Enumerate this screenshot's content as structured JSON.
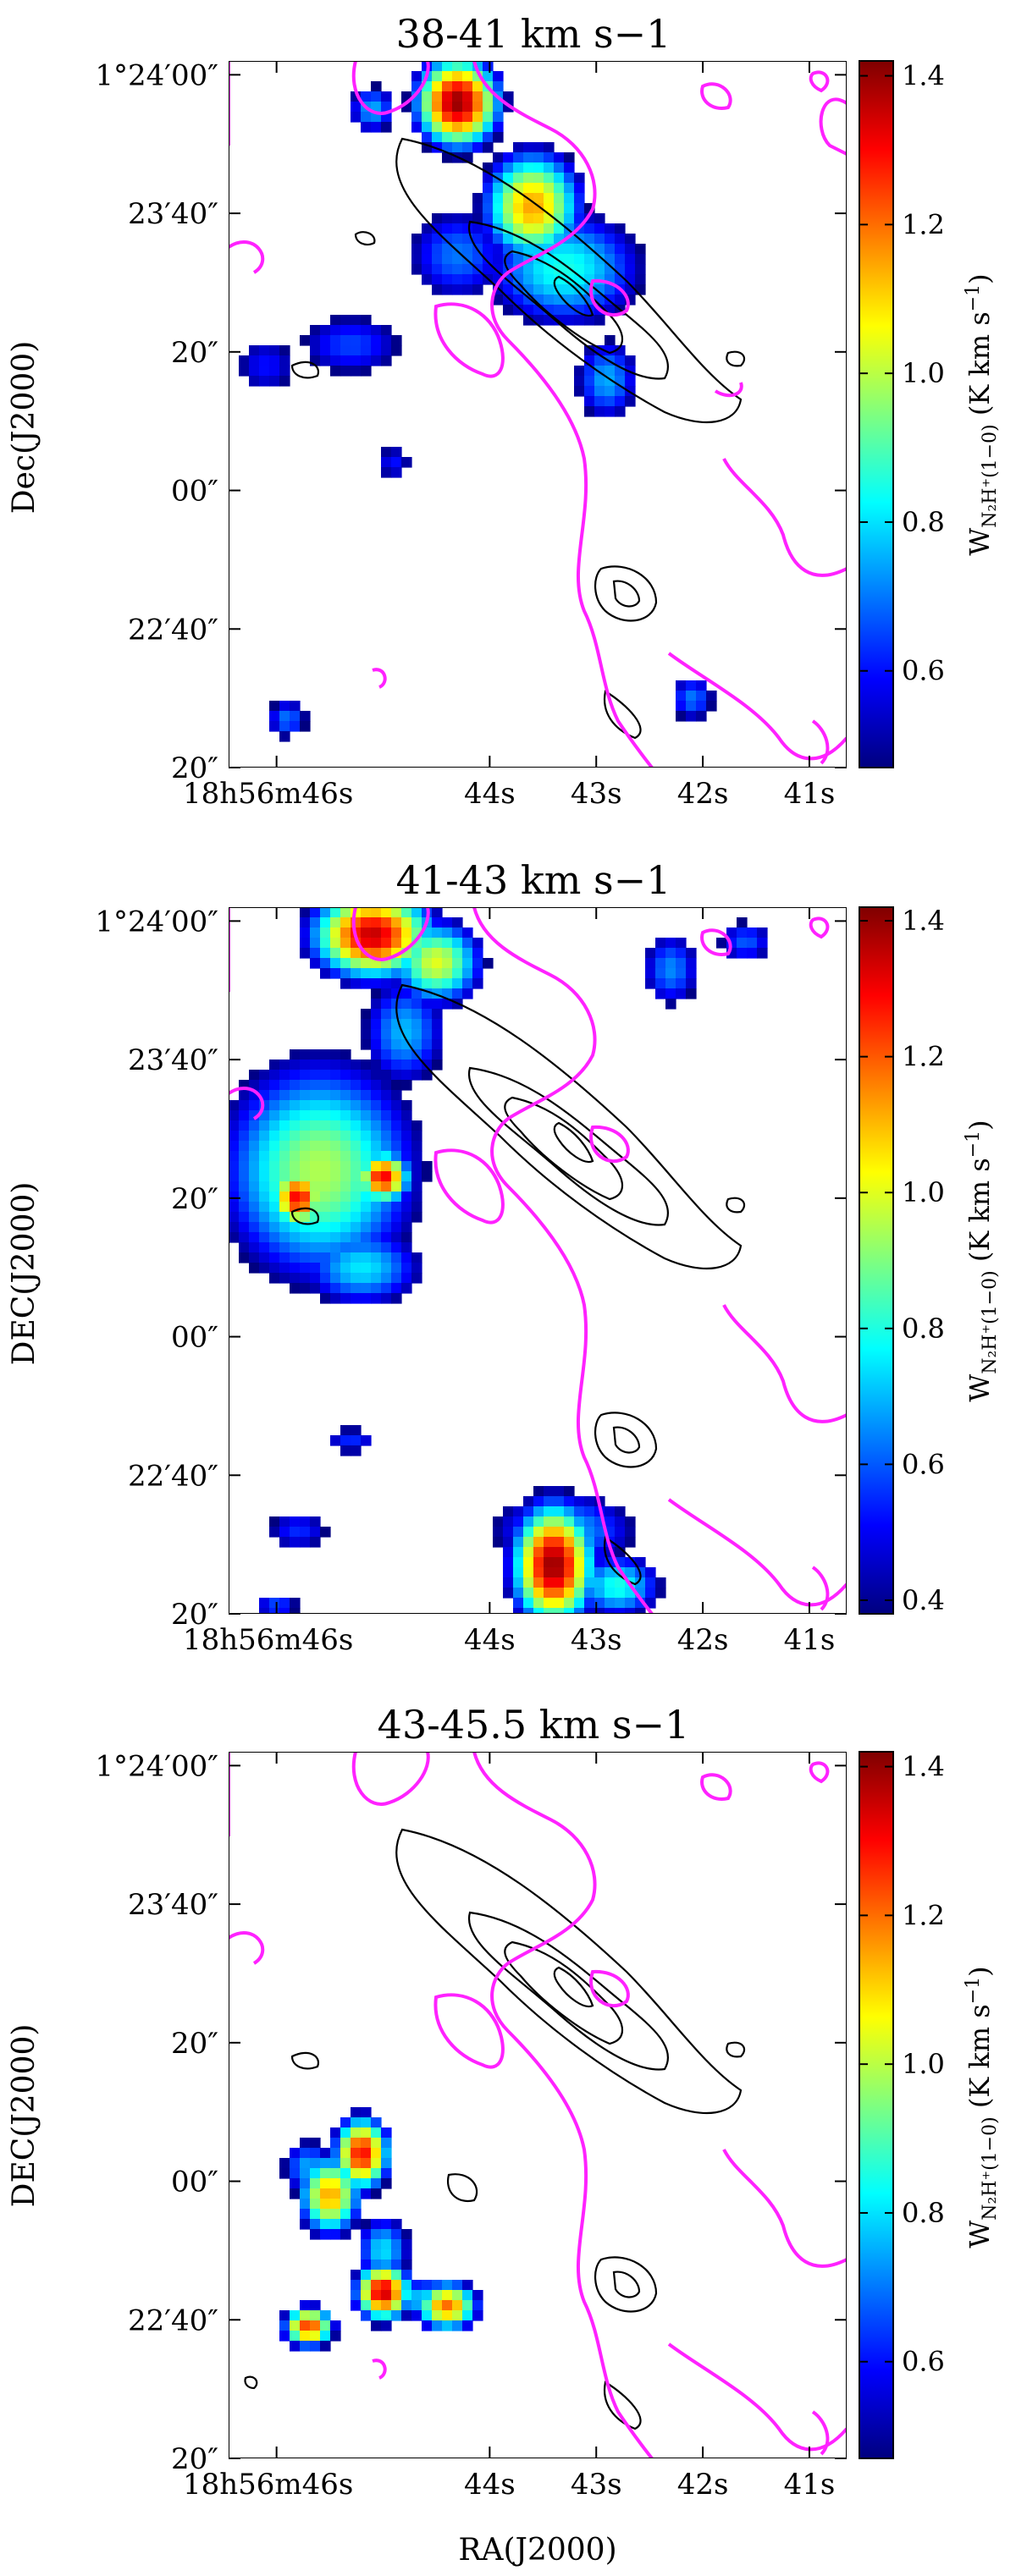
{
  "chart_data": [
    {
      "type": "heatmap",
      "title": "38-41 km s−1",
      "xlabel": "",
      "ylabel": "Dec(J2000)",
      "x_ticks": [
        "18h56m46s",
        "44s",
        "43s",
        "42s",
        "41s"
      ],
      "x_tick_values_s": [
        46,
        44,
        43,
        42,
        41
      ],
      "y_ticks": [
        "1°24′00″",
        "23′40″",
        "20″",
        "00″",
        "22′40″",
        "20″"
      ],
      "y_tick_values_arcsec": [
        1440,
        1420,
        1400,
        1380,
        1360,
        1340
      ],
      "xlim_s": [
        46.45,
        40.65
      ],
      "ylim_arcsec": [
        1340,
        1442
      ],
      "colorbar": {
        "label": "W_N2H+(1−0) (K km s−1)",
        "ticks": [
          "1.4",
          "1.2",
          "1.0",
          "0.8",
          "0.6"
        ],
        "tick_values": [
          1.4,
          1.2,
          1.0,
          0.8,
          0.6
        ],
        "range": [
          0.47,
          1.42
        ]
      },
      "blobs": [
        {
          "ra_s": 44.3,
          "dec": 1436.0,
          "peak": 1.4,
          "sx": 0.33,
          "sy": 5.5
        },
        {
          "ra_s": 45.1,
          "dec": 1435.0,
          "peak": 0.75,
          "sx": 0.22,
          "sy": 3.5
        },
        {
          "ra_s": 43.6,
          "dec": 1421.0,
          "peak": 1.15,
          "sx": 0.4,
          "sy": 7.0
        },
        {
          "ra_s": 43.3,
          "dec": 1412.0,
          "peak": 0.85,
          "sx": 0.7,
          "sy": 8.0
        },
        {
          "ra_s": 42.9,
          "dec": 1396.0,
          "peak": 0.75,
          "sx": 0.3,
          "sy": 6.0
        },
        {
          "ra_s": 44.3,
          "dec": 1414.0,
          "peak": 0.7,
          "sx": 0.5,
          "sy": 7.0
        },
        {
          "ra_s": 45.3,
          "dec": 1401.0,
          "peak": 0.65,
          "sx": 0.55,
          "sy": 5.0
        },
        {
          "ra_s": 46.1,
          "dec": 1398.0,
          "peak": 0.6,
          "sx": 0.35,
          "sy": 5.0
        },
        {
          "ra_s": 45.9,
          "dec": 1347.0,
          "peak": 0.7,
          "sx": 0.2,
          "sy": 3.0
        },
        {
          "ra_s": 44.9,
          "dec": 1384.0,
          "peak": 0.6,
          "sx": 0.2,
          "sy": 3.0
        },
        {
          "ra_s": 42.1,
          "dec": 1350.0,
          "peak": 0.7,
          "sx": 0.22,
          "sy": 3.5
        }
      ]
    },
    {
      "type": "heatmap",
      "title": "41-43 km s−1",
      "xlabel": "",
      "ylabel": "DEC(J2000)",
      "x_ticks": [
        "18h56m46s",
        "44s",
        "43s",
        "42s",
        "41s"
      ],
      "x_tick_values_s": [
        46,
        44,
        43,
        42,
        41
      ],
      "y_ticks": [
        "1°24′00″",
        "23′40″",
        "20″",
        "00″",
        "22′40″",
        "20″"
      ],
      "y_tick_values_arcsec": [
        1440,
        1420,
        1400,
        1380,
        1360,
        1340
      ],
      "xlim_s": [
        46.45,
        40.65
      ],
      "ylim_arcsec": [
        1340,
        1442
      ],
      "colorbar": {
        "label": "W_N2H+(1−0) (K km s−1)",
        "ticks": [
          "1.4",
          "1.2",
          "1.0",
          "0.8",
          "0.6",
          "0.4"
        ],
        "tick_values": [
          1.4,
          1.2,
          1.0,
          0.8,
          0.6,
          0.4
        ],
        "range": [
          0.38,
          1.42
        ]
      },
      "blobs": [
        {
          "ra_s": 45.1,
          "dec": 1438.0,
          "peak": 1.35,
          "sx": 0.45,
          "sy": 5.0
        },
        {
          "ra_s": 44.5,
          "dec": 1434.0,
          "peak": 1.0,
          "sx": 0.35,
          "sy": 5.0
        },
        {
          "ra_s": 44.8,
          "dec": 1424.0,
          "peak": 0.7,
          "sx": 0.35,
          "sy": 7.0
        },
        {
          "ra_s": 45.6,
          "dec": 1404.0,
          "peak": 0.95,
          "sx": 0.75,
          "sy": 13.0
        },
        {
          "ra_s": 45.8,
          "dec": 1400.0,
          "peak": 1.3,
          "sx": 0.2,
          "sy": 3.5
        },
        {
          "ra_s": 45.0,
          "dec": 1403.0,
          "peak": 1.3,
          "sx": 0.2,
          "sy": 3.0
        },
        {
          "ra_s": 45.2,
          "dec": 1390.0,
          "peak": 0.75,
          "sx": 0.5,
          "sy": 5.0
        },
        {
          "ra_s": 43.4,
          "dec": 1347.0,
          "peak": 1.4,
          "sx": 0.3,
          "sy": 7.0
        },
        {
          "ra_s": 43.3,
          "dec": 1352.0,
          "peak": 0.7,
          "sx": 0.6,
          "sy": 5.0
        },
        {
          "ra_s": 42.8,
          "dec": 1344.0,
          "peak": 0.8,
          "sx": 0.35,
          "sy": 4.0
        },
        {
          "ra_s": 42.3,
          "dec": 1433.0,
          "peak": 0.65,
          "sx": 0.25,
          "sy": 5.0
        },
        {
          "ra_s": 41.6,
          "dec": 1437.0,
          "peak": 0.6,
          "sx": 0.25,
          "sy": 3.0
        },
        {
          "ra_s": 45.8,
          "dec": 1352.0,
          "peak": 0.55,
          "sx": 0.3,
          "sy": 3.0
        },
        {
          "ra_s": 45.3,
          "dec": 1365.0,
          "peak": 0.55,
          "sx": 0.25,
          "sy": 2.0
        },
        {
          "ra_s": 46.0,
          "dec": 1341.0,
          "peak": 0.6,
          "sx": 0.2,
          "sy": 2.0
        }
      ]
    },
    {
      "type": "heatmap",
      "title": "43-45.5 km s−1",
      "xlabel": "RA(J2000)",
      "ylabel": "DEC(J2000)",
      "x_ticks": [
        "18h56m46s",
        "44s",
        "43s",
        "42s",
        "41s"
      ],
      "x_tick_values_s": [
        46,
        44,
        43,
        42,
        41
      ],
      "y_ticks": [
        "1°24′00″",
        "23′40″",
        "20″",
        "00″",
        "22′40″",
        "20″"
      ],
      "y_tick_values_arcsec": [
        1440,
        1420,
        1400,
        1380,
        1360,
        1340
      ],
      "xlim_s": [
        46.45,
        40.65
      ],
      "ylim_arcsec": [
        1340,
        1442
      ],
      "colorbar": {
        "label": "W_N2H+(1−0) (K km s−1)",
        "ticks": [
          "1.4",
          "1.2",
          "1.0",
          "0.8",
          "0.6"
        ],
        "tick_values": [
          1.4,
          1.2,
          1.0,
          0.8,
          0.6
        ],
        "range": [
          0.47,
          1.42
        ]
      },
      "blobs": [
        {
          "ra_s": 45.2,
          "dec": 1384.0,
          "peak": 1.3,
          "sx": 0.22,
          "sy": 4.5
        },
        {
          "ra_s": 45.5,
          "dec": 1378.0,
          "peak": 1.15,
          "sx": 0.25,
          "sy": 5.0
        },
        {
          "ra_s": 45.7,
          "dec": 1382.0,
          "peak": 0.75,
          "sx": 0.25,
          "sy": 4.0
        },
        {
          "ra_s": 45.0,
          "dec": 1370.0,
          "peak": 0.8,
          "sx": 0.25,
          "sy": 5.0
        },
        {
          "ra_s": 45.0,
          "dec": 1364.0,
          "peak": 1.35,
          "sx": 0.22,
          "sy": 3.5
        },
        {
          "ra_s": 44.4,
          "dec": 1362.0,
          "peak": 1.2,
          "sx": 0.25,
          "sy": 3.0
        },
        {
          "ra_s": 44.6,
          "dec": 1363.0,
          "peak": 0.8,
          "sx": 0.35,
          "sy": 3.0
        },
        {
          "ra_s": 45.7,
          "dec": 1359.0,
          "peak": 1.25,
          "sx": 0.2,
          "sy": 2.5
        }
      ]
    }
  ]
}
